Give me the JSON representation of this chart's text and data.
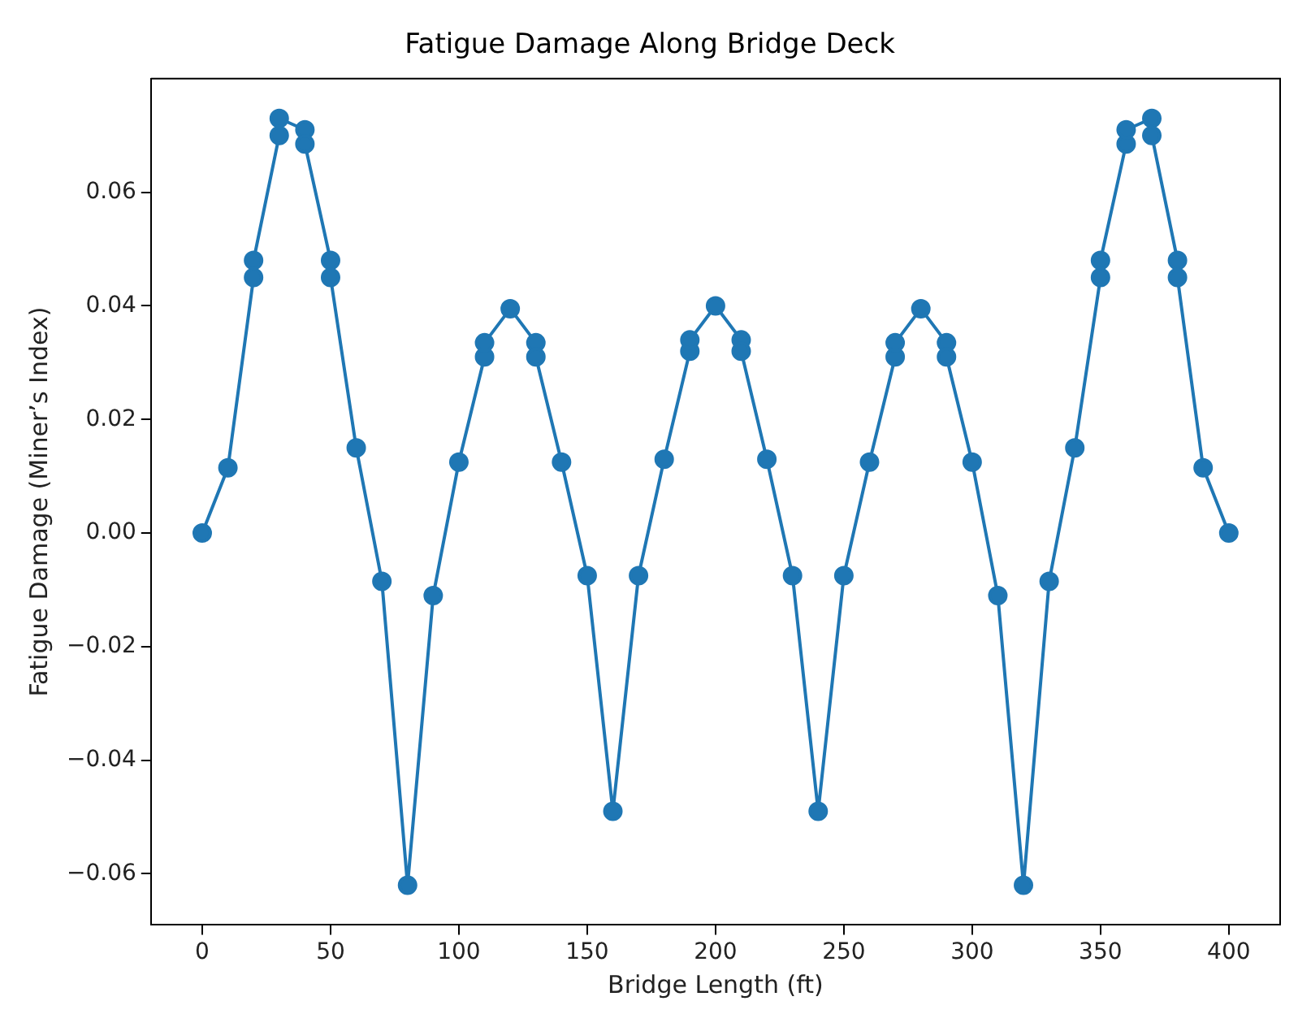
{
  "chart_data": {
    "type": "line",
    "title": "Fatigue Damage Along Bridge Deck",
    "xlabel": "Bridge Length (ft)",
    "ylabel": "Fatigue Damage (Miner’s Index)",
    "x": [
      0,
      10,
      20,
      20,
      30,
      30,
      40,
      40,
      50,
      50,
      60,
      70,
      80,
      90,
      100,
      110,
      110,
      120,
      130,
      130,
      140,
      150,
      160,
      170,
      180,
      190,
      190,
      200,
      210,
      210,
      220,
      230,
      240,
      250,
      260,
      270,
      270,
      280,
      290,
      290,
      300,
      310,
      320,
      330,
      340,
      350,
      350,
      360,
      360,
      370,
      370,
      380,
      380,
      390,
      400
    ],
    "series": [
      {
        "color": "#1f77b4",
        "values": [
          0,
          0.0115,
          0.045,
          0.048,
          0.07,
          0.073,
          0.071,
          0.0685,
          0.048,
          0.045,
          0.015,
          -0.0085,
          -0.062,
          -0.011,
          0.0125,
          0.031,
          0.0335,
          0.0395,
          0.0335,
          0.031,
          0.0125,
          -0.0075,
          -0.049,
          -0.0075,
          0.013,
          0.032,
          0.034,
          0.04,
          0.034,
          0.032,
          0.013,
          -0.0075,
          -0.049,
          -0.0075,
          0.0125,
          0.031,
          0.0335,
          0.0395,
          0.0335,
          0.031,
          0.0125,
          -0.011,
          -0.062,
          -0.0085,
          0.015,
          0.045,
          0.048,
          0.0685,
          0.071,
          0.073,
          0.07,
          0.048,
          0.045,
          0.0115,
          0
        ]
      }
    ],
    "xlim": [
      -20,
      420
    ],
    "xticks": [
      0,
      50,
      100,
      150,
      200,
      250,
      300,
      350,
      400
    ],
    "ylim": [
      -0.069,
      0.08
    ],
    "yticks": [
      {
        "value": -0.06,
        "label": "−0.06"
      },
      {
        "value": -0.04,
        "label": "−0.04"
      },
      {
        "value": -0.02,
        "label": "−0.02"
      },
      {
        "value": 0,
        "label": "0.00"
      },
      {
        "value": 0.02,
        "label": "0.02"
      },
      {
        "value": 0.04,
        "label": "0.04"
      },
      {
        "value": 0.06,
        "label": "0.06"
      }
    ],
    "grid": false,
    "legend": false,
    "marker": "circle",
    "line_style": "solid"
  }
}
